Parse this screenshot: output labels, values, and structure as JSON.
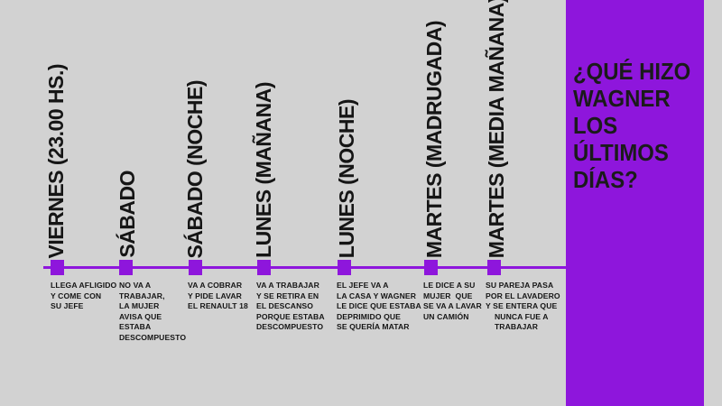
{
  "title": "¿QUÉ HIZO WAGNER LOS ÚLTIMOS DÍAS?",
  "colors": {
    "background": "#d2d2d2",
    "accent": "#8e16dc",
    "text": "#151515"
  },
  "events": [
    {
      "period": "VIERNES (23.00 HS.)",
      "description": "LLEGA AFLIGIDO\nY COME CON\nSU JEFE"
    },
    {
      "period": "SÁBADO",
      "description": "NO VA A\nTRABAJAR,\nLA MUJER\nAVISA QUE\nESTABA\nDESCOMPUESTO"
    },
    {
      "period": "SÁBADO (NOCHE)",
      "description": "VA A COBRAR\nY PIDE LAVAR\nEL RENAULT 18"
    },
    {
      "period": "LUNES (MAÑANA)",
      "description": "VA A TRABAJAR\nY SE RETIRA EN\nEL DESCANSO\nPORQUE ESTABA\nDESCOMPUESTO"
    },
    {
      "period": "LUNES (NOCHE)",
      "description": "EL JEFE VA A\nLA CASA Y WAGNER\nLE DICE QUE ESTABA\nDEPRIMIDO QUE\nSE QUERÍA MATAR"
    },
    {
      "period": "MARTES (MADRUGADA)",
      "description": "LE DICE A SU\nMUJER  QUE\nSE VA A LAVAR\nUN CAMIÓN"
    },
    {
      "period": "MARTES (MEDIA MAÑANA)",
      "description": "SU PAREJA PASA\nPOR EL LAVADERO\nY SE ENTERA QUE\n    NUNCA FUE A\n    TRABAJAR"
    }
  ]
}
